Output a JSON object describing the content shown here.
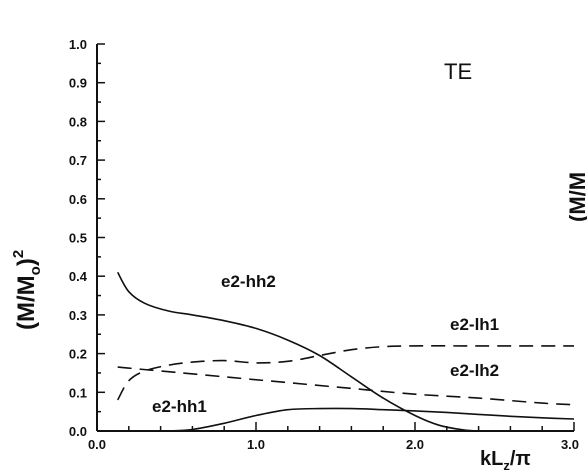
{
  "chart_data": {
    "type": "line",
    "mode_label": "TE",
    "ylabel": {
      "base": "(M/M",
      "sub": "o",
      "close": ")",
      "sup": "2"
    },
    "xlabel": {
      "base": "kL",
      "sub": "z",
      "rest": "/π"
    },
    "xlim": [
      0.0,
      3.0
    ],
    "ylim": [
      0.0,
      1.0
    ],
    "x_ticks": [
      "0.0",
      "1.0",
      "2.0",
      "3.0"
    ],
    "y_ticks": [
      "0.0",
      "0.1",
      "0.2",
      "0.3",
      "0.4",
      "0.5",
      "0.6",
      "0.7",
      "0.8",
      "0.9",
      "1.0"
    ],
    "right_edge_partial_text": "(M/M",
    "series": [
      {
        "name": "e2-hh2",
        "style": "solid",
        "x": [
          0.13,
          0.2,
          0.3,
          0.45,
          0.6,
          0.8,
          1.0,
          1.2,
          1.4,
          1.6,
          1.8,
          2.0,
          2.15,
          2.3,
          2.4
        ],
        "y": [
          0.41,
          0.36,
          0.33,
          0.31,
          0.3,
          0.285,
          0.265,
          0.235,
          0.195,
          0.14,
          0.085,
          0.04,
          0.015,
          0.003,
          0.0
        ]
      },
      {
        "name": "e2-lh1",
        "style": "dashed",
        "x": [
          0.13,
          0.2,
          0.3,
          0.45,
          0.6,
          0.8,
          1.0,
          1.2,
          1.4,
          1.6,
          1.8,
          2.0,
          2.3,
          2.6,
          3.0
        ],
        "y": [
          0.08,
          0.13,
          0.155,
          0.17,
          0.178,
          0.182,
          0.176,
          0.18,
          0.195,
          0.21,
          0.218,
          0.22,
          0.22,
          0.22,
          0.22
        ]
      },
      {
        "name": "e2-lh2",
        "style": "dashed",
        "x": [
          0.13,
          0.4,
          0.8,
          1.2,
          1.6,
          2.0,
          2.4,
          2.8,
          3.0
        ],
        "y": [
          0.165,
          0.155,
          0.14,
          0.125,
          0.11,
          0.095,
          0.085,
          0.072,
          0.068
        ]
      },
      {
        "name": "e2-hh1",
        "style": "solid",
        "x": [
          0.45,
          0.6,
          0.8,
          1.0,
          1.2,
          1.4,
          1.6,
          1.8,
          2.0,
          2.2,
          2.4,
          2.6,
          2.8,
          3.0
        ],
        "y": [
          0.0,
          0.004,
          0.02,
          0.04,
          0.055,
          0.058,
          0.058,
          0.055,
          0.052,
          0.048,
          0.043,
          0.038,
          0.034,
          0.031
        ]
      }
    ]
  }
}
